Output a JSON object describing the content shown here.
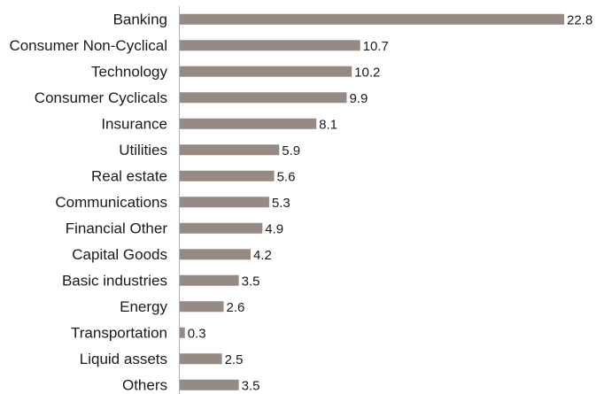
{
  "colors": {
    "bar": "#958a84",
    "axis": "#b3b3b3",
    "text": "#1a1a1a"
  },
  "chart_data": {
    "type": "bar",
    "orientation": "horizontal",
    "title": "",
    "xlabel": "",
    "ylabel": "",
    "grid": false,
    "legend": "none",
    "xlim": [
      0,
      22.8
    ],
    "categories": [
      "Banking",
      "Consumer Non-Cyclical",
      "Technology",
      "Consumer Cyclicals",
      "Insurance",
      "Utilities",
      "Real estate",
      "Communications",
      "Financial Other",
      "Capital Goods",
      "Basic industries",
      "Energy",
      "Transportation",
      "Liquid assets",
      "Others"
    ],
    "values": [
      22.8,
      10.7,
      10.2,
      9.9,
      8.1,
      5.9,
      5.6,
      5.3,
      4.9,
      4.2,
      3.5,
      2.6,
      0.3,
      2.5,
      3.5
    ],
    "value_labels": [
      "22.8",
      "10.7",
      "10.2",
      "9.9",
      "8.1",
      "5.9",
      "5.6",
      "5.3",
      "4.9",
      "4.2",
      "3.5",
      "2.6",
      "0.3",
      "2.5",
      "3.5"
    ]
  }
}
